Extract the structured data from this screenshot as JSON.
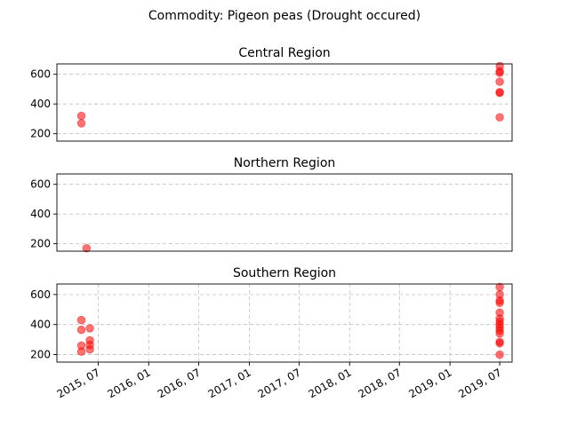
{
  "chart_data": {
    "type": "scatter",
    "title": "Commodity: Pigeon peas (Drought occured)",
    "marker_color": "#ff0000",
    "marker_alpha": 0.55,
    "grid": "dashed, on",
    "x_ticks": [
      "2015, 07",
      "2016, 01",
      "2016, 07",
      "2017, 01",
      "2017, 07",
      "2018, 01",
      "2018, 07",
      "2019, 01",
      "2019, 07"
    ],
    "x_tick_dates": [
      "2015-07-01",
      "2016-01-01",
      "2016-07-01",
      "2017-01-01",
      "2017-07-01",
      "2018-01-01",
      "2018-07-01",
      "2019-01-01",
      "2019-07-01"
    ],
    "xlim": [
      "2015-02-01",
      "2019-08-15"
    ],
    "ylim": [
      150,
      670
    ],
    "y_ticks": [
      200,
      400,
      600
    ],
    "panels": [
      {
        "title": "Central Region",
        "x_grid": false,
        "points": [
          {
            "date": "2015-05-01",
            "value": 320
          },
          {
            "date": "2015-05-01",
            "value": 270
          },
          {
            "date": "2019-07-01",
            "value": 655
          },
          {
            "date": "2019-07-01",
            "value": 620
          },
          {
            "date": "2019-07-01",
            "value": 610
          },
          {
            "date": "2019-07-01",
            "value": 550
          },
          {
            "date": "2019-07-01",
            "value": 480
          },
          {
            "date": "2019-07-01",
            "value": 475
          },
          {
            "date": "2019-07-01",
            "value": 310
          }
        ]
      },
      {
        "title": "Northern Region",
        "x_grid": false,
        "points": [
          {
            "date": "2015-05-20",
            "value": 170
          }
        ]
      },
      {
        "title": "Southern Region",
        "x_grid": true,
        "points": [
          {
            "date": "2015-05-01",
            "value": 430
          },
          {
            "date": "2015-05-01",
            "value": 365
          },
          {
            "date": "2015-05-01",
            "value": 260
          },
          {
            "date": "2015-05-01",
            "value": 220
          },
          {
            "date": "2015-06-01",
            "value": 375
          },
          {
            "date": "2015-06-01",
            "value": 295
          },
          {
            "date": "2015-06-01",
            "value": 265
          },
          {
            "date": "2015-06-01",
            "value": 235
          },
          {
            "date": "2019-07-01",
            "value": 650
          },
          {
            "date": "2019-07-01",
            "value": 600
          },
          {
            "date": "2019-07-01",
            "value": 560
          },
          {
            "date": "2019-07-01",
            "value": 545
          },
          {
            "date": "2019-07-01",
            "value": 480
          },
          {
            "date": "2019-07-01",
            "value": 440
          },
          {
            "date": "2019-07-01",
            "value": 420
          },
          {
            "date": "2019-07-01",
            "value": 400
          },
          {
            "date": "2019-07-01",
            "value": 380
          },
          {
            "date": "2019-07-01",
            "value": 360
          },
          {
            "date": "2019-07-01",
            "value": 340
          },
          {
            "date": "2019-07-01",
            "value": 285
          },
          {
            "date": "2019-07-01",
            "value": 275
          },
          {
            "date": "2019-07-01",
            "value": 200
          }
        ]
      }
    ]
  }
}
